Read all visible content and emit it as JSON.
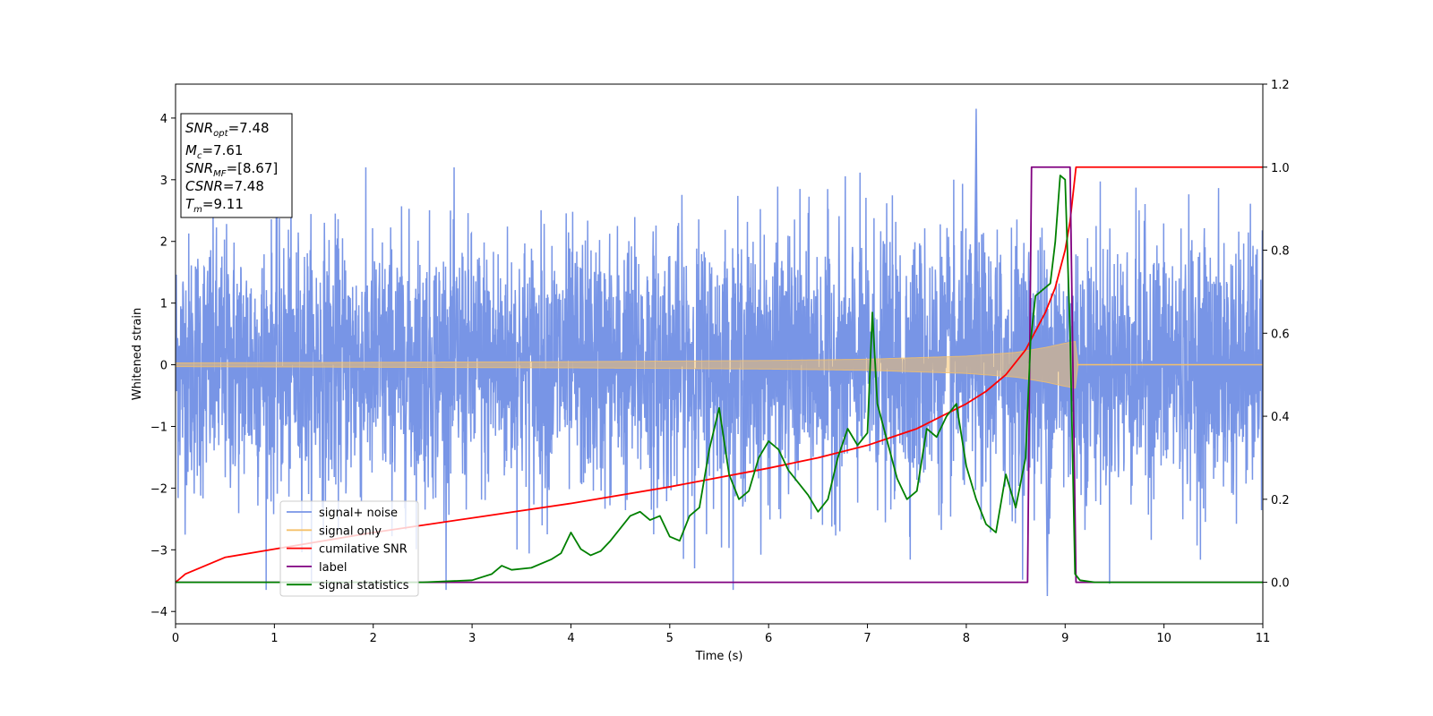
{
  "chart_data": {
    "type": "line",
    "xlabel": "Time (s)",
    "ylabel": "Whitened strain",
    "xlim": [
      0,
      11
    ],
    "ylim": [
      -4.2,
      4.55
    ],
    "y2lim": [
      -0.1,
      1.2
    ],
    "x_ticks": [
      0,
      1,
      2,
      3,
      4,
      5,
      6,
      7,
      8,
      9,
      10,
      11
    ],
    "y_ticks": [
      -4,
      -3,
      -2,
      -1,
      0,
      1,
      2,
      3,
      4
    ],
    "y2_ticks": [
      0.0,
      0.2,
      0.4,
      0.6,
      0.8,
      1.0,
      1.2
    ],
    "grid": false,
    "legend_position": "lower-left",
    "info_box": {
      "position": "top-left",
      "lines": [
        {
          "sym": "SNR",
          "sub": "opt",
          "value": "=7.48"
        },
        {
          "sym": "M",
          "sub": "c",
          "value": "=7.61"
        },
        {
          "sym": "SNR",
          "sub": "MF",
          "value": "=[8.67]"
        },
        {
          "sym": "CSNR",
          "sub": "",
          "value": "=7.48"
        },
        {
          "sym": "T",
          "sub": "m",
          "value": "=9.11"
        }
      ]
    },
    "series": [
      {
        "name": "signal+ noise",
        "axis": "left",
        "color": "#7895e6",
        "noise_std": 1.05,
        "y_min": -3.75,
        "y_max": 4.15,
        "peak_x": 8.1
      },
      {
        "name": "signal only",
        "axis": "left",
        "color": "#f5c16a",
        "envelope_x": [
          0,
          2,
          4,
          6,
          7,
          8,
          8.5,
          8.8,
          9.0,
          9.11,
          9.12,
          11
        ],
        "envelope_y": [
          0.03,
          0.04,
          0.05,
          0.07,
          0.09,
          0.14,
          0.2,
          0.28,
          0.35,
          0.38,
          0.0,
          0.0
        ]
      },
      {
        "name": "cumilative SNR",
        "axis": "right",
        "color": "#ff0000",
        "x": [
          0,
          0.1,
          0.5,
          1,
          2,
          3,
          4,
          5,
          6,
          6.5,
          7,
          7.5,
          8,
          8.2,
          8.4,
          8.6,
          8.8,
          8.9,
          9.0,
          9.05,
          9.11,
          9.12,
          11
        ],
        "y": [
          0.0,
          0.02,
          0.06,
          0.08,
          0.12,
          0.155,
          0.19,
          0.23,
          0.275,
          0.3,
          0.33,
          0.37,
          0.43,
          0.46,
          0.5,
          0.56,
          0.65,
          0.71,
          0.8,
          0.87,
          1.0,
          1.0,
          1.0
        ]
      },
      {
        "name": "label",
        "axis": "right",
        "color": "#800080",
        "x": [
          0,
          8.62,
          8.66,
          9.05,
          9.11,
          11
        ],
        "y": [
          0,
          0,
          1,
          1,
          0,
          0
        ]
      },
      {
        "name": "signal statistics",
        "axis": "right",
        "color": "#008000",
        "x": [
          0,
          0.5,
          1,
          1.5,
          2,
          2.5,
          3,
          3.2,
          3.3,
          3.4,
          3.6,
          3.8,
          3.9,
          4.0,
          4.1,
          4.2,
          4.3,
          4.4,
          4.5,
          4.6,
          4.7,
          4.8,
          4.9,
          5.0,
          5.1,
          5.2,
          5.3,
          5.4,
          5.5,
          5.6,
          5.7,
          5.8,
          5.9,
          6.0,
          6.1,
          6.2,
          6.3,
          6.4,
          6.5,
          6.6,
          6.7,
          6.8,
          6.9,
          7.0,
          7.05,
          7.1,
          7.2,
          7.3,
          7.4,
          7.5,
          7.6,
          7.7,
          7.8,
          7.9,
          8.0,
          8.1,
          8.2,
          8.3,
          8.4,
          8.5,
          8.55,
          8.6,
          8.65,
          8.7,
          8.8,
          8.85,
          8.9,
          8.95,
          9.0,
          9.05,
          9.1,
          9.15,
          9.3,
          10,
          11
        ],
        "y": [
          0,
          0,
          0,
          0,
          0,
          0,
          0.005,
          0.02,
          0.04,
          0.03,
          0.035,
          0.055,
          0.07,
          0.12,
          0.08,
          0.065,
          0.075,
          0.1,
          0.13,
          0.16,
          0.17,
          0.15,
          0.16,
          0.11,
          0.1,
          0.16,
          0.18,
          0.32,
          0.42,
          0.26,
          0.2,
          0.22,
          0.3,
          0.34,
          0.32,
          0.27,
          0.24,
          0.21,
          0.17,
          0.2,
          0.3,
          0.37,
          0.33,
          0.36,
          0.65,
          0.43,
          0.34,
          0.25,
          0.2,
          0.22,
          0.37,
          0.35,
          0.4,
          0.43,
          0.28,
          0.2,
          0.14,
          0.12,
          0.26,
          0.18,
          0.24,
          0.3,
          0.58,
          0.69,
          0.71,
          0.72,
          0.82,
          0.98,
          0.97,
          0.6,
          0.02,
          0.005,
          0,
          0,
          0
        ]
      }
    ]
  }
}
